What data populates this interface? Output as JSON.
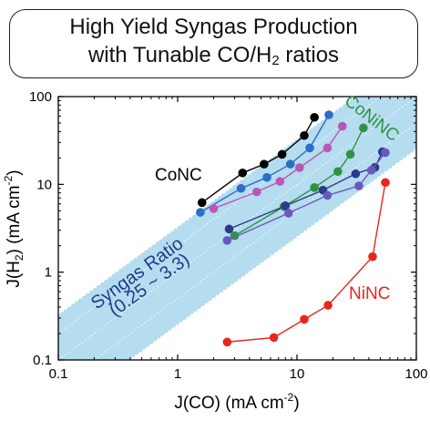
{
  "title_line1": "High Yield Syngas Production",
  "title_line2_before": "with Tunable CO/H",
  "title_line2_sub": "2",
  "title_line2_after": " ratios",
  "chart_data": {
    "type": "scatter",
    "xscale": "log",
    "yscale": "log",
    "xlim": [
      0.1,
      100
    ],
    "ylim": [
      0.1,
      100
    ],
    "xticks": [
      "0.1",
      "1",
      "10",
      "100"
    ],
    "yticks": [
      "0.1",
      "1",
      "10",
      "100"
    ],
    "xlabel": "J(CO) (mA cm",
    "xlabel_sup": "-2",
    "xlabel_end": ")",
    "ylabel": "J(H",
    "ylabel_sub": "2",
    "ylabel_end": ") (mA cm",
    "ylabel_sup": "-2",
    "ylabel_close": ")",
    "band": {
      "label_line1": "Syngas Ratio",
      "label_line2": "(0.25 ~ 3.3)",
      "ratio_min": 0.25,
      "ratio_max": 3.3,
      "color": "#b5dcef",
      "label_color": "#1c3c88"
    },
    "series": [
      {
        "name": "CoNC",
        "color": "#000000",
        "x": [
          1.6,
          3.5,
          5.3,
          7.5,
          11.5,
          14
        ],
        "y": [
          6.2,
          13.5,
          17,
          22,
          36,
          58
        ]
      },
      {
        "name": "",
        "color": "#2a6fc4",
        "x": [
          1.55,
          3.4,
          5.6,
          8.8,
          12.8,
          18.5
        ],
        "y": [
          4.8,
          9,
          12,
          17,
          26,
          62
        ]
      },
      {
        "name": "",
        "color": "#bb56b8",
        "x": [
          2.0,
          4.6,
          7.2,
          10.5,
          18,
          24
        ],
        "y": [
          5.3,
          8.2,
          10.8,
          15.5,
          26,
          46
        ]
      },
      {
        "name": "CoNiNC",
        "color": "#2e9240",
        "x": [
          3.0,
          7.8,
          14,
          22,
          28,
          36
        ],
        "y": [
          2.6,
          5.6,
          9.2,
          14,
          22,
          44
        ]
      },
      {
        "name": "",
        "color": "#2b3a8a",
        "x": [
          2.7,
          8.0,
          16.5,
          31,
          45,
          52
        ],
        "y": [
          3.1,
          5.7,
          8.6,
          13.2,
          15.6,
          23.5
        ]
      },
      {
        "name": "",
        "color": "#6a58bd",
        "x": [
          2.6,
          8.5,
          18,
          33,
          42,
          55
        ],
        "y": [
          2.3,
          4.7,
          7.5,
          9.6,
          14.5,
          23
        ]
      },
      {
        "name": "NiNC",
        "color": "#e8261c",
        "x": [
          2.6,
          6.4,
          11.5,
          18.2,
          43,
          55
        ],
        "y": [
          0.16,
          0.18,
          0.29,
          0.42,
          1.5,
          10.5
        ]
      }
    ],
    "labels": [
      {
        "text": "CoNC",
        "color": "#000000"
      },
      {
        "text": "CoNiNC",
        "color": "#2e9240"
      },
      {
        "text": "NiNC",
        "color": "#e8261c"
      }
    ]
  }
}
